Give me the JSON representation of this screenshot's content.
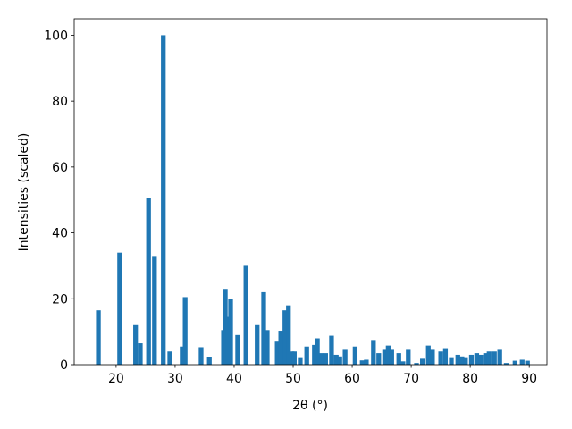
{
  "chart_data": {
    "type": "bar",
    "x_label": "2θ (°)",
    "y_label": "Intensities (scaled)",
    "x": [
      17.0,
      20.6,
      23.3,
      24.1,
      25.5,
      26.5,
      28.0,
      29.1,
      31.2,
      31.7,
      34.4,
      35.8,
      38.2,
      38.5,
      39.0,
      39.4,
      40.6,
      42.0,
      43.9,
      45.0,
      45.6,
      47.3,
      47.9,
      48.6,
      49.2,
      49.8,
      50.2,
      51.2,
      52.3,
      53.6,
      54.1,
      54.8,
      55.5,
      56.5,
      57.3,
      57.9,
      58.8,
      60.5,
      61.7,
      62.4,
      63.6,
      64.5,
      65.5,
      66.1,
      66.7,
      67.9,
      68.6,
      69.5,
      70.9,
      71.9,
      72.9,
      73.6,
      75.0,
      75.8,
      76.8,
      77.9,
      78.6,
      79.2,
      80.2,
      81.1,
      81.8,
      82.6,
      83.2,
      84.1,
      85.0,
      86.1,
      87.6,
      88.8,
      89.7
    ],
    "values": [
      16.5,
      34,
      12,
      6.5,
      50.5,
      33,
      100,
      4,
      5.5,
      20.5,
      5.3,
      2.3,
      10.5,
      23,
      14.5,
      20,
      9,
      30,
      12,
      22,
      10.5,
      7,
      10.3,
      16.5,
      18,
      4,
      4,
      2,
      5.5,
      6,
      8,
      3.5,
      3.5,
      8.8,
      3,
      2.5,
      4.5,
      5.5,
      1.3,
      1.5,
      7.5,
      3.5,
      4.5,
      5.8,
      4.5,
      3.5,
      1,
      4.5,
      0.5,
      1.8,
      5.8,
      4.5,
      4,
      5,
      2,
      3,
      2.5,
      2,
      3,
      3.5,
      3,
      3.5,
      4,
      4,
      4.5,
      0.5,
      1.2,
      1.5,
      1.2
    ],
    "color": "#1f77b4",
    "xlim": [
      12.9,
      93.0
    ],
    "ylim": [
      0,
      105
    ],
    "xticks": [
      20,
      30,
      40,
      50,
      60,
      70,
      80,
      90
    ],
    "yticks": [
      0,
      20,
      40,
      60,
      80,
      100
    ]
  }
}
